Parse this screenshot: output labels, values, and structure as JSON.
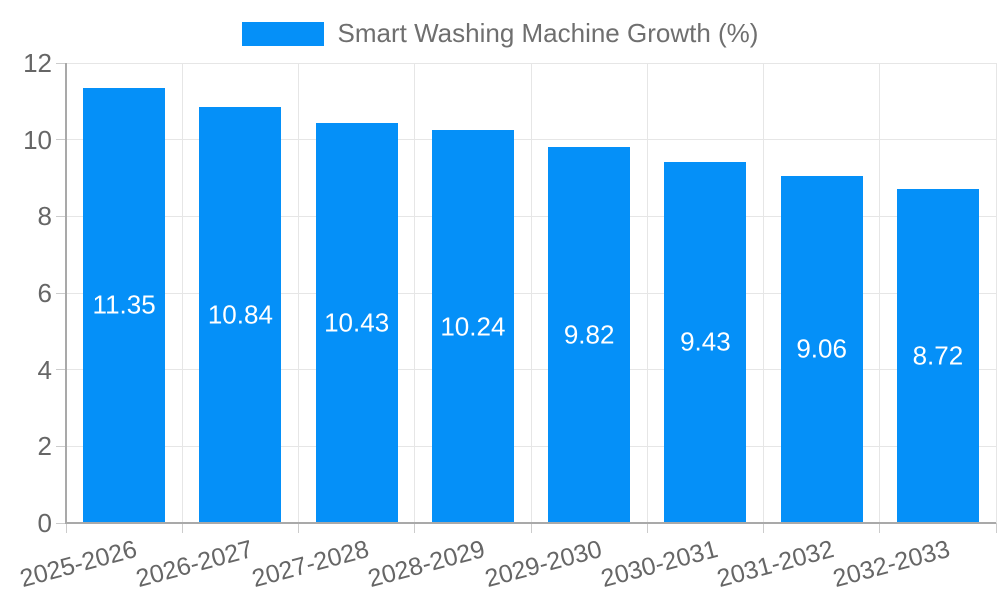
{
  "chart_data": {
    "type": "bar",
    "legend": "Smart Washing Machine Growth (%)",
    "legend_position": "top-center",
    "categories": [
      "2025-2026",
      "2026-2027",
      "2027-2028",
      "2028-2029",
      "2029-2030",
      "2030-2031",
      "2031-2032",
      "2032-2033"
    ],
    "values": [
      11.35,
      10.84,
      10.43,
      10.24,
      9.82,
      9.43,
      9.06,
      8.72
    ],
    "value_labels": [
      "11.35",
      "10.84",
      "10.43",
      "10.24",
      "9.82",
      "9.43",
      "9.06",
      "8.72"
    ],
    "xlabel": "",
    "ylabel": "",
    "ylim": [
      0,
      12
    ],
    "yticks": [
      0,
      2,
      4,
      6,
      8,
      10,
      12
    ],
    "grid": true,
    "x_label_rotation_deg": -15,
    "bar_color": "#0590f8",
    "value_label_color": "#ffffff",
    "axis_text_color": "#666666",
    "legend_text_color": "#6f6f6f",
    "grid_color": "#e6e6e6",
    "tick_color": "#cccccc",
    "axis_line_color": "#a9a9a9",
    "background_color": "#ffffff"
  }
}
